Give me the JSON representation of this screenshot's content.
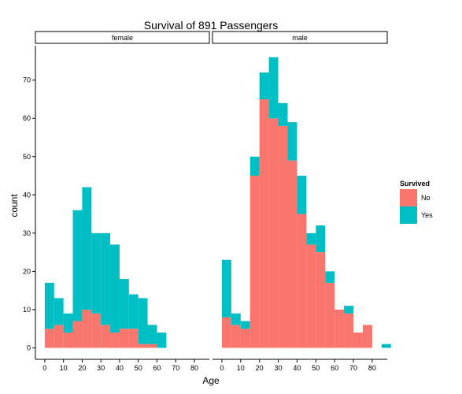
{
  "chart_data": {
    "type": "histogram",
    "title": "Survival of 891 Passengers",
    "xlabel": "Age",
    "ylabel": "count",
    "bin_width": 5,
    "stacked": true,
    "xlim": [
      -5,
      88
    ],
    "ylim": [
      -3,
      79
    ],
    "x_ticks": [
      "0",
      "10",
      "20",
      "30",
      "40",
      "50",
      "60",
      "70",
      "80"
    ],
    "y_ticks": [
      "0",
      "10",
      "20",
      "30",
      "40",
      "50",
      "60",
      "70"
    ],
    "grid": false,
    "legend": {
      "title": "Survived",
      "position": "right",
      "entries": [
        {
          "label": "No",
          "color": "#F8766D"
        },
        {
          "label": "Yes",
          "color": "#00BFC4"
        }
      ]
    },
    "panels": [
      {
        "name": "female",
        "bins": [
          {
            "x": 0,
            "no": 5,
            "yes": 12
          },
          {
            "x": 5,
            "no": 6,
            "yes": 7
          },
          {
            "x": 10,
            "no": 4,
            "yes": 5
          },
          {
            "x": 15,
            "no": 7,
            "yes": 29
          },
          {
            "x": 20,
            "no": 10,
            "yes": 32
          },
          {
            "x": 25,
            "no": 9,
            "yes": 21
          },
          {
            "x": 30,
            "no": 6,
            "yes": 24
          },
          {
            "x": 35,
            "no": 4,
            "yes": 23
          },
          {
            "x": 40,
            "no": 5,
            "yes": 13
          },
          {
            "x": 45,
            "no": 5,
            "yes": 9
          },
          {
            "x": 50,
            "no": 1,
            "yes": 12
          },
          {
            "x": 55,
            "no": 1,
            "yes": 5
          },
          {
            "x": 60,
            "no": 0,
            "yes": 4
          }
        ]
      },
      {
        "name": "male",
        "bins": [
          {
            "x": 0,
            "no": 8,
            "yes": 15
          },
          {
            "x": 5,
            "no": 6,
            "yes": 3
          },
          {
            "x": 10,
            "no": 5,
            "yes": 2
          },
          {
            "x": 15,
            "no": 45,
            "yes": 5
          },
          {
            "x": 20,
            "no": 65,
            "yes": 7
          },
          {
            "x": 25,
            "no": 60,
            "yes": 16
          },
          {
            "x": 30,
            "no": 58,
            "yes": 6
          },
          {
            "x": 35,
            "no": 49,
            "yes": 10
          },
          {
            "x": 40,
            "no": 35,
            "yes": 10
          },
          {
            "x": 45,
            "no": 27,
            "yes": 3
          },
          {
            "x": 50,
            "no": 25,
            "yes": 7
          },
          {
            "x": 55,
            "no": 17,
            "yes": 3
          },
          {
            "x": 60,
            "no": 10,
            "yes": 0
          },
          {
            "x": 65,
            "no": 9,
            "yes": 2
          },
          {
            "x": 70,
            "no": 4,
            "yes": 0
          },
          {
            "x": 75,
            "no": 6,
            "yes": 0
          },
          {
            "x": 80,
            "no": 0,
            "yes": 0
          },
          {
            "x": 85,
            "no": 0,
            "yes": 1
          }
        ]
      }
    ]
  }
}
